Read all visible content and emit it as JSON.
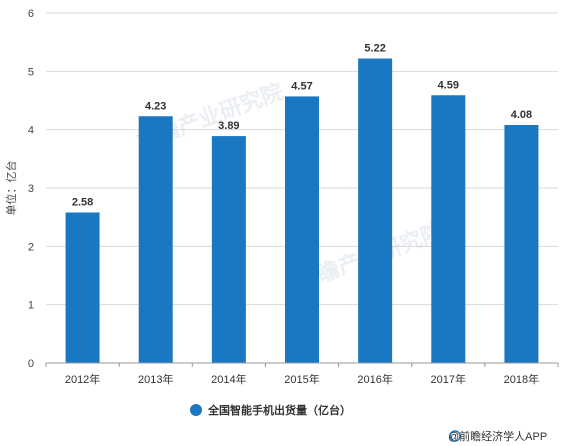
{
  "chart_data": {
    "type": "bar",
    "categories": [
      "2012年",
      "2013年",
      "2014年",
      "2015年",
      "2016年",
      "2017年",
      "2018年"
    ],
    "series": [
      {
        "name": "全国智能手机出货量（亿台）",
        "values": [
          2.58,
          4.23,
          3.89,
          4.57,
          5.22,
          4.59,
          4.08
        ]
      }
    ],
    "data_labels": [
      "2.58",
      "4.23",
      "3.89",
      "4.57",
      "5.22",
      "4.59",
      "4.08"
    ],
    "ylabel": "单位：亿台",
    "ylim": [
      0,
      6
    ],
    "yticks": [
      0,
      1,
      2,
      3,
      4,
      5,
      6
    ],
    "grid": true,
    "legend_position": "bottom-center",
    "bar_color": "#1a78c2"
  },
  "watermark": "前瞻产业研究院",
  "source": "@前瞻经济学人APP"
}
